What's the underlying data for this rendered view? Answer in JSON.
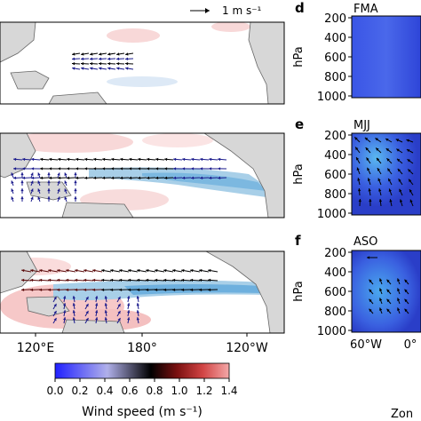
{
  "chart_data": [
    {
      "type": "heatmap",
      "panel": "maps",
      "x_ticks": [
        "120°E",
        "180°",
        "120°W"
      ],
      "ref_arrow_label": "1 m s⁻¹",
      "rows": 3
    },
    {
      "type": "heatmap",
      "panel": "d",
      "label": "d",
      "season": "FMA",
      "ylabel": "hPa",
      "y_ticks": [
        "200",
        "400",
        "600",
        "800",
        "1000"
      ]
    },
    {
      "type": "heatmap",
      "panel": "e",
      "label": "e",
      "season": "MJJ",
      "ylabel": "hPa",
      "y_ticks": [
        "200",
        "400",
        "600",
        "800",
        "1000"
      ]
    },
    {
      "type": "heatmap",
      "panel": "f",
      "label": "f",
      "season": "ASO",
      "ylabel": "hPa",
      "y_ticks": [
        "200",
        "400",
        "600",
        "800",
        "1000"
      ],
      "x_ticks": [
        "60°W",
        "0°"
      ],
      "xlabel_partial": "Zon"
    }
  ],
  "colorbar": {
    "label": "Wind speed (m s⁻¹)",
    "ticks": [
      "0.0",
      "0.2",
      "0.4",
      "0.6",
      "0.8",
      "1.0",
      "1.2",
      "1.4"
    ],
    "range": [
      0,
      1.4
    ],
    "colors": [
      "#1a1aff",
      "#6a6ad8",
      "#b8b8e8",
      "#000000",
      "#7a1010",
      "#d04040",
      "#f2a0a0"
    ]
  },
  "colors": {
    "land": "#d7d7d7",
    "ocean": "#ffffff",
    "blue_shade": "#aad0e8",
    "red_shade": "#f6d0d0",
    "arrow_blue": "#1a1a8c",
    "profile_bg": "#3d55e0"
  }
}
